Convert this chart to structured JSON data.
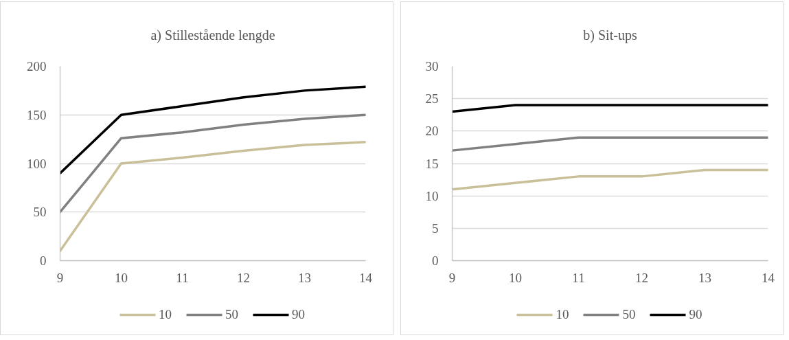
{
  "chart_data": [
    {
      "type": "line",
      "title": "a) Stillestående lengde",
      "x": [
        9,
        10,
        11,
        12,
        13,
        14
      ],
      "series": [
        {
          "name": "10",
          "color": "#c9c09a",
          "values": [
            10,
            100,
            106,
            113,
            119,
            122
          ]
        },
        {
          "name": "50",
          "color": "#808080",
          "values": [
            50,
            126,
            132,
            140,
            146,
            150
          ]
        },
        {
          "name": "90",
          "color": "#000000",
          "values": [
            90,
            150,
            159,
            168,
            175,
            179
          ]
        }
      ],
      "xlim": [
        9,
        14
      ],
      "xticks": [
        9,
        10,
        11,
        12,
        13,
        14
      ],
      "ylim": [
        0,
        200
      ],
      "yticks": [
        0,
        50,
        100,
        150,
        200
      ],
      "grid": "y",
      "legend": "bottom"
    },
    {
      "type": "line",
      "title": "b) Sit-ups",
      "x": [
        9,
        10,
        11,
        12,
        13,
        14
      ],
      "series": [
        {
          "name": "10",
          "color": "#c9c09a",
          "values": [
            11,
            12,
            13,
            13,
            14,
            14
          ]
        },
        {
          "name": "50",
          "color": "#808080",
          "values": [
            17,
            18,
            19,
            19,
            19,
            19
          ]
        },
        {
          "name": "90",
          "color": "#000000",
          "values": [
            23,
            24,
            24,
            24,
            24,
            24
          ]
        }
      ],
      "xlim": [
        9,
        14
      ],
      "xticks": [
        9,
        10,
        11,
        12,
        13,
        14
      ],
      "ylim": [
        0,
        30
      ],
      "yticks": [
        0,
        5,
        10,
        15,
        20,
        25,
        30
      ],
      "grid": "y",
      "legend": "bottom"
    }
  ]
}
